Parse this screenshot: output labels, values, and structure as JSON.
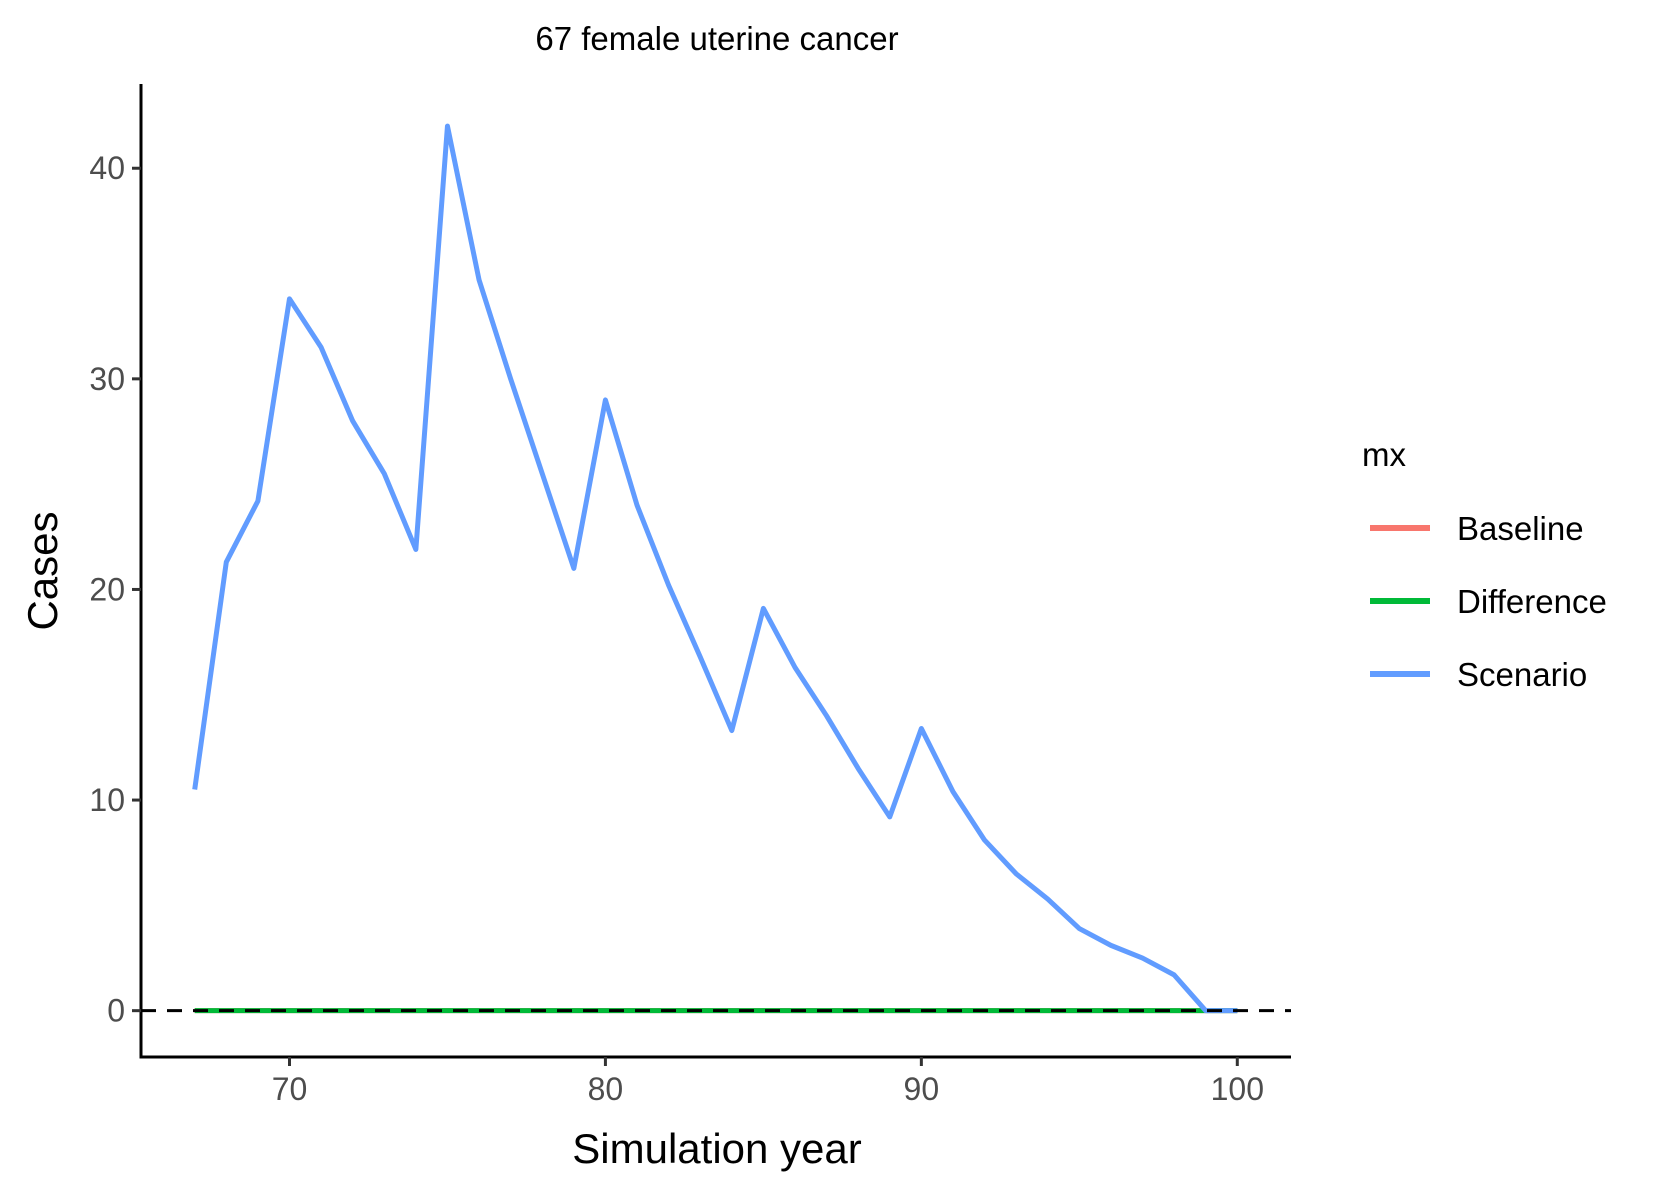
{
  "chart_data": {
    "type": "line",
    "title": "67 female uterine cancer",
    "xlabel": "Simulation year",
    "ylabel": "Cases",
    "xlim": [
      65.3,
      101.7
    ],
    "ylim": [
      -2.2,
      44.0
    ],
    "x_ticks": [
      70,
      80,
      90,
      100
    ],
    "y_ticks": [
      0,
      10,
      20,
      30,
      40
    ],
    "x_tick_labels": [
      "70",
      "80",
      "90",
      "100"
    ],
    "y_tick_labels": [
      "0",
      "10",
      "20",
      "30",
      "40"
    ],
    "reference_line": {
      "y": 0,
      "style": "dashed",
      "color": "#000000"
    },
    "grid": false,
    "legend": {
      "title": "mx",
      "position": "right"
    },
    "x": [
      67,
      68,
      69,
      70,
      71,
      72,
      73,
      74,
      75,
      76,
      77,
      78,
      79,
      80,
      81,
      82,
      83,
      84,
      85,
      86,
      87,
      88,
      89,
      90,
      91,
      92,
      93,
      94,
      95,
      96,
      97,
      98,
      99,
      100
    ],
    "series": [
      {
        "name": "Baseline",
        "color": "#F8766D",
        "values": [
          0,
          0,
          0,
          0,
          0,
          0,
          0,
          0,
          0,
          0,
          0,
          0,
          0,
          0,
          0,
          0,
          0,
          0,
          0,
          0,
          0,
          0,
          0,
          0,
          0,
          0,
          0,
          0,
          0,
          0,
          0,
          0,
          0,
          0
        ]
      },
      {
        "name": "Difference",
        "color": "#00BA38",
        "values": [
          0,
          0,
          0,
          0,
          0,
          0,
          0,
          0,
          0,
          0,
          0,
          0,
          0,
          0,
          0,
          0,
          0,
          0,
          0,
          0,
          0,
          0,
          0,
          0,
          0,
          0,
          0,
          0,
          0,
          0,
          0,
          0,
          0,
          0
        ]
      },
      {
        "name": "Scenario",
        "color": "#619CFF",
        "values": [
          10.5,
          21.3,
          24.2,
          33.8,
          31.5,
          28.0,
          25.5,
          21.9,
          42.0,
          34.7,
          30.0,
          25.5,
          21.0,
          29.0,
          24.0,
          20.2,
          16.8,
          13.3,
          19.1,
          16.3,
          14.0,
          11.5,
          9.2,
          13.4,
          10.4,
          8.1,
          6.5,
          5.3,
          3.9,
          3.1,
          2.5,
          1.7,
          0,
          0
        ]
      }
    ]
  }
}
